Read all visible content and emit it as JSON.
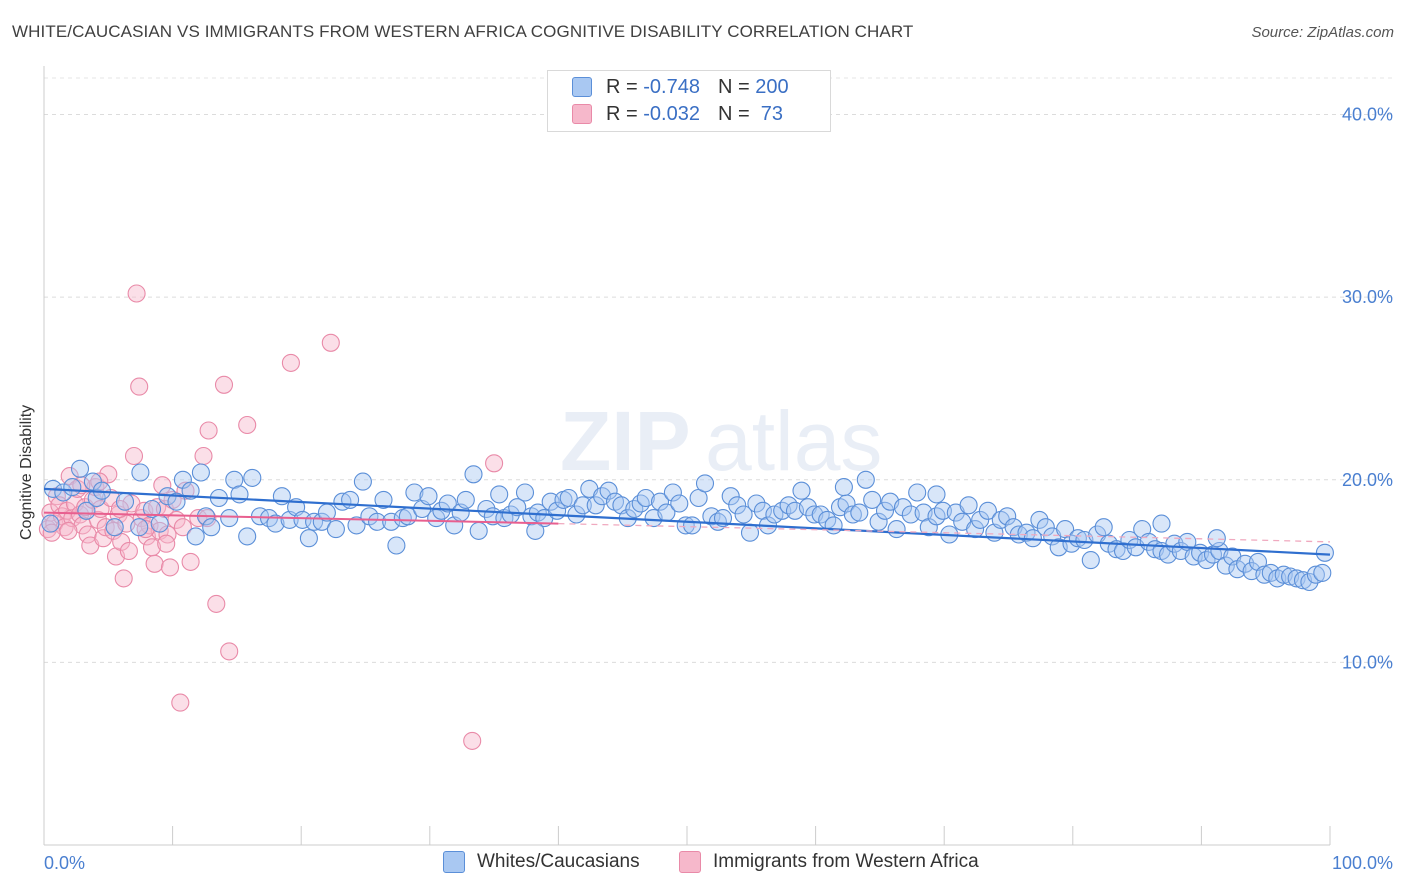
{
  "title": "WHITE/CAUCASIAN VS IMMIGRANTS FROM WESTERN AFRICA COGNITIVE DISABILITY CORRELATION CHART",
  "source": "Source: ZipAtlas.com",
  "watermark": "ZIPatlas",
  "legend": {
    "rows": [
      {
        "r_label": "R = ",
        "r_value": "-0.748",
        "n_label": "N = ",
        "n_value": "200",
        "color": "#a9c8f2"
      },
      {
        "r_label": "R = ",
        "r_value": "-0.032",
        "n_label": "N = ",
        "n_value": " 73",
        "color": "#f6b8cb"
      }
    ]
  },
  "bottom_legend": {
    "series1": "Whites/Caucasians",
    "series2": "Immigrants from Western Africa"
  },
  "colors": {
    "blue_fill": "#a9c8f2",
    "blue_stroke": "#5b8fd8",
    "blue_line": "#2f6fcf",
    "pink_fill": "#f6b8cb",
    "pink_stroke": "#e98aa8",
    "pink_line": "#e85f8f",
    "axis_text": "#4a7fd0"
  },
  "chart_data": {
    "type": "scatter",
    "title": "WHITE/CAUCASIAN VS IMMIGRANTS FROM WESTERN AFRICA COGNITIVE DISABILITY CORRELATION CHART",
    "xlabel": "",
    "ylabel": "Cognitive Disability",
    "xlim": [
      0,
      100
    ],
    "ylim": [
      0,
      42
    ],
    "y_ticks": [
      10,
      20,
      30,
      40
    ],
    "y_tick_labels": [
      "10.0%",
      "20.0%",
      "30.0%",
      "40.0%"
    ],
    "x_tick_labels": [
      "0.0%",
      "100.0%"
    ],
    "series": [
      {
        "name": "Whites/Caucasians",
        "r": -0.748,
        "n": 200,
        "trend": {
          "x": [
            0,
            100
          ],
          "y": [
            19.5,
            15.9
          ]
        },
        "points": [
          [
            0.5,
            17.6
          ],
          [
            0.7,
            19.5
          ],
          [
            1.5,
            19.3
          ],
          [
            2.2,
            19.6
          ],
          [
            2.8,
            20.6
          ],
          [
            3.3,
            18.3
          ],
          [
            3.8,
            19.9
          ],
          [
            4.1,
            19.0
          ],
          [
            4.5,
            19.4
          ],
          [
            5.5,
            17.4
          ],
          [
            6.3,
            18.8
          ],
          [
            7.4,
            17.4
          ],
          [
            7.5,
            20.4
          ],
          [
            8.4,
            18.4
          ],
          [
            9.0,
            17.6
          ],
          [
            9.6,
            19.1
          ],
          [
            10.3,
            18.8
          ],
          [
            10.8,
            20.0
          ],
          [
            11.4,
            19.4
          ],
          [
            11.8,
            16.9
          ],
          [
            12.2,
            20.4
          ],
          [
            12.6,
            18.0
          ],
          [
            13.0,
            17.4
          ],
          [
            13.6,
            19.0
          ],
          [
            14.4,
            17.9
          ],
          [
            14.8,
            20.0
          ],
          [
            15.2,
            19.2
          ],
          [
            15.8,
            16.9
          ],
          [
            16.2,
            20.1
          ],
          [
            16.8,
            18.0
          ],
          [
            17.5,
            17.9
          ],
          [
            18.0,
            17.6
          ],
          [
            18.5,
            19.1
          ],
          [
            19.1,
            17.8
          ],
          [
            19.6,
            18.5
          ],
          [
            20.1,
            17.8
          ],
          [
            20.6,
            16.8
          ],
          [
            21.0,
            17.7
          ],
          [
            21.6,
            17.7
          ],
          [
            22.0,
            18.2
          ],
          [
            22.7,
            17.3
          ],
          [
            23.2,
            18.8
          ],
          [
            23.8,
            18.9
          ],
          [
            24.3,
            17.5
          ],
          [
            24.8,
            19.9
          ],
          [
            25.3,
            18.0
          ],
          [
            25.9,
            17.7
          ],
          [
            26.4,
            18.9
          ],
          [
            27.0,
            17.7
          ],
          [
            27.4,
            16.4
          ],
          [
            27.9,
            17.9
          ],
          [
            28.3,
            18.0
          ],
          [
            28.8,
            19.3
          ],
          [
            29.4,
            18.4
          ],
          [
            29.9,
            19.1
          ],
          [
            30.5,
            17.9
          ],
          [
            30.9,
            18.3
          ],
          [
            31.4,
            18.7
          ],
          [
            31.9,
            17.5
          ],
          [
            32.4,
            18.2
          ],
          [
            32.8,
            18.9
          ],
          [
            33.4,
            20.3
          ],
          [
            33.8,
            17.2
          ],
          [
            34.4,
            18.4
          ],
          [
            34.9,
            18.0
          ],
          [
            35.4,
            19.2
          ],
          [
            35.8,
            17.9
          ],
          [
            36.3,
            18.1
          ],
          [
            36.8,
            18.5
          ],
          [
            37.4,
            19.3
          ],
          [
            37.9,
            18.0
          ],
          [
            38.4,
            18.2
          ],
          [
            38.9,
            17.9
          ],
          [
            39.4,
            18.8
          ],
          [
            39.9,
            18.3
          ],
          [
            40.4,
            18.9
          ],
          [
            40.8,
            19.0
          ],
          [
            41.4,
            18.1
          ],
          [
            41.9,
            18.6
          ],
          [
            42.4,
            19.5
          ],
          [
            42.9,
            18.6
          ],
          [
            43.4,
            19.1
          ],
          [
            43.9,
            19.4
          ],
          [
            44.4,
            18.8
          ],
          [
            44.9,
            18.6
          ],
          [
            45.4,
            17.9
          ],
          [
            45.9,
            18.4
          ],
          [
            46.4,
            18.7
          ],
          [
            46.8,
            19.0
          ],
          [
            47.4,
            17.9
          ],
          [
            47.9,
            18.8
          ],
          [
            48.4,
            18.2
          ],
          [
            48.9,
            19.3
          ],
          [
            49.4,
            18.7
          ],
          [
            49.9,
            17.5
          ],
          [
            50.4,
            17.5
          ],
          [
            50.9,
            19.0
          ],
          [
            51.4,
            19.8
          ],
          [
            51.9,
            18.0
          ],
          [
            52.4,
            17.7
          ],
          [
            52.8,
            17.9
          ],
          [
            53.4,
            19.1
          ],
          [
            53.9,
            18.6
          ],
          [
            54.4,
            18.1
          ],
          [
            54.9,
            17.1
          ],
          [
            55.4,
            18.7
          ],
          [
            55.9,
            18.3
          ],
          [
            56.3,
            17.5
          ],
          [
            56.8,
            18.1
          ],
          [
            57.4,
            18.3
          ],
          [
            57.9,
            18.6
          ],
          [
            58.4,
            18.3
          ],
          [
            58.9,
            19.4
          ],
          [
            59.4,
            18.5
          ],
          [
            59.9,
            18.1
          ],
          [
            60.4,
            18.1
          ],
          [
            60.9,
            17.8
          ],
          [
            61.4,
            17.5
          ],
          [
            61.9,
            18.5
          ],
          [
            62.4,
            18.7
          ],
          [
            62.9,
            18.1
          ],
          [
            63.4,
            18.2
          ],
          [
            63.9,
            20.0
          ],
          [
            64.4,
            18.9
          ],
          [
            64.9,
            17.7
          ],
          [
            65.4,
            18.3
          ],
          [
            65.8,
            18.8
          ],
          [
            66.3,
            17.3
          ],
          [
            66.8,
            18.5
          ],
          [
            67.4,
            18.1
          ],
          [
            67.9,
            19.3
          ],
          [
            68.4,
            18.2
          ],
          [
            68.8,
            17.4
          ],
          [
            69.4,
            18.0
          ],
          [
            69.9,
            18.3
          ],
          [
            70.4,
            17.0
          ],
          [
            70.9,
            18.2
          ],
          [
            71.4,
            17.7
          ],
          [
            71.9,
            18.6
          ],
          [
            72.4,
            17.3
          ],
          [
            72.8,
            17.8
          ],
          [
            73.4,
            18.3
          ],
          [
            73.9,
            17.1
          ],
          [
            74.4,
            17.8
          ],
          [
            74.9,
            18.0
          ],
          [
            75.4,
            17.4
          ],
          [
            75.8,
            17.0
          ],
          [
            76.4,
            17.1
          ],
          [
            76.9,
            16.8
          ],
          [
            77.4,
            17.8
          ],
          [
            77.9,
            17.4
          ],
          [
            78.4,
            16.9
          ],
          [
            78.9,
            16.3
          ],
          [
            79.4,
            17.3
          ],
          [
            79.9,
            16.5
          ],
          [
            80.4,
            16.8
          ],
          [
            80.9,
            16.7
          ],
          [
            81.4,
            15.6
          ],
          [
            81.9,
            17.0
          ],
          [
            82.4,
            17.4
          ],
          [
            82.8,
            16.5
          ],
          [
            83.4,
            16.2
          ],
          [
            83.9,
            16.1
          ],
          [
            84.4,
            16.7
          ],
          [
            84.9,
            16.3
          ],
          [
            85.4,
            17.3
          ],
          [
            85.9,
            16.6
          ],
          [
            86.4,
            16.2
          ],
          [
            86.9,
            16.1
          ],
          [
            87.4,
            15.9
          ],
          [
            87.9,
            16.5
          ],
          [
            88.4,
            16.1
          ],
          [
            88.9,
            16.6
          ],
          [
            89.4,
            15.8
          ],
          [
            89.9,
            16.0
          ],
          [
            90.4,
            15.6
          ],
          [
            90.9,
            15.9
          ],
          [
            91.4,
            16.1
          ],
          [
            91.9,
            15.3
          ],
          [
            92.4,
            15.8
          ],
          [
            92.8,
            15.1
          ],
          [
            93.4,
            15.4
          ],
          [
            93.9,
            15.0
          ],
          [
            94.4,
            15.5
          ],
          [
            94.9,
            14.8
          ],
          [
            95.4,
            14.9
          ],
          [
            95.9,
            14.6
          ],
          [
            96.4,
            14.8
          ],
          [
            96.9,
            14.7
          ],
          [
            97.4,
            14.6
          ],
          [
            97.9,
            14.5
          ],
          [
            98.4,
            14.4
          ],
          [
            98.9,
            14.8
          ],
          [
            99.4,
            14.9
          ],
          [
            99.6,
            16.0
          ],
          [
            38.2,
            17.2
          ],
          [
            62.2,
            19.6
          ],
          [
            69.4,
            19.2
          ],
          [
            86.9,
            17.6
          ],
          [
            91.2,
            16.8
          ]
        ]
      },
      {
        "name": "Immigrants from Western Africa",
        "r": -0.032,
        "n": 73,
        "trend": {
          "x": [
            0,
            40
          ],
          "y": [
            18.2,
            17.6
          ]
        },
        "dashed_trend": {
          "x": [
            40,
            100
          ],
          "y": [
            17.6,
            16.6
          ]
        },
        "points": [
          [
            0.3,
            17.3
          ],
          [
            0.5,
            18.2
          ],
          [
            0.8,
            17.6
          ],
          [
            1.0,
            19.1
          ],
          [
            1.2,
            18.6
          ],
          [
            1.4,
            18.0
          ],
          [
            1.6,
            17.4
          ],
          [
            1.8,
            18.3
          ],
          [
            2.0,
            20.2
          ],
          [
            2.2,
            17.9
          ],
          [
            2.4,
            18.7
          ],
          [
            2.6,
            19.5
          ],
          [
            2.8,
            18.1
          ],
          [
            3.0,
            17.5
          ],
          [
            3.2,
            18.5
          ],
          [
            3.4,
            17.0
          ],
          [
            3.6,
            16.4
          ],
          [
            3.8,
            18.9
          ],
          [
            4.0,
            19.6
          ],
          [
            4.2,
            17.8
          ],
          [
            4.4,
            18.4
          ],
          [
            4.6,
            16.8
          ],
          [
            4.8,
            17.4
          ],
          [
            5.0,
            20.3
          ],
          [
            5.2,
            19.0
          ],
          [
            5.4,
            17.2
          ],
          [
            5.6,
            15.8
          ],
          [
            5.8,
            18.1
          ],
          [
            6.0,
            16.6
          ],
          [
            6.2,
            14.6
          ],
          [
            6.4,
            17.6
          ],
          [
            6.6,
            16.1
          ],
          [
            6.8,
            18.7
          ],
          [
            7.0,
            21.3
          ],
          [
            7.2,
            30.2
          ],
          [
            7.4,
            25.1
          ],
          [
            7.6,
            17.9
          ],
          [
            7.8,
            18.3
          ],
          [
            8.0,
            16.9
          ],
          [
            8.2,
            17.5
          ],
          [
            8.4,
            16.3
          ],
          [
            8.6,
            15.4
          ],
          [
            8.8,
            18.5
          ],
          [
            9.0,
            17.2
          ],
          [
            9.2,
            19.7
          ],
          [
            9.4,
            18.4
          ],
          [
            9.6,
            17.0
          ],
          [
            9.8,
            15.2
          ],
          [
            10.0,
            18.9
          ],
          [
            10.3,
            17.8
          ],
          [
            10.6,
            7.8
          ],
          [
            11.0,
            19.4
          ],
          [
            11.4,
            15.5
          ],
          [
            12.0,
            17.9
          ],
          [
            12.4,
            21.3
          ],
          [
            12.8,
            22.7
          ],
          [
            13.4,
            13.2
          ],
          [
            14.0,
            25.2
          ],
          [
            14.4,
            10.6
          ],
          [
            15.8,
            23.0
          ],
          [
            19.2,
            26.4
          ],
          [
            22.3,
            27.5
          ],
          [
            33.3,
            5.7
          ],
          [
            35.0,
            20.9
          ],
          [
            0.6,
            17.1
          ],
          [
            1.9,
            17.2
          ],
          [
            2.9,
            19.7
          ],
          [
            4.3,
            19.9
          ],
          [
            5.9,
            18.4
          ],
          [
            7.9,
            17.3
          ],
          [
            9.5,
            16.5
          ],
          [
            10.8,
            17.4
          ],
          [
            12.7,
            17.9
          ]
        ]
      }
    ]
  }
}
